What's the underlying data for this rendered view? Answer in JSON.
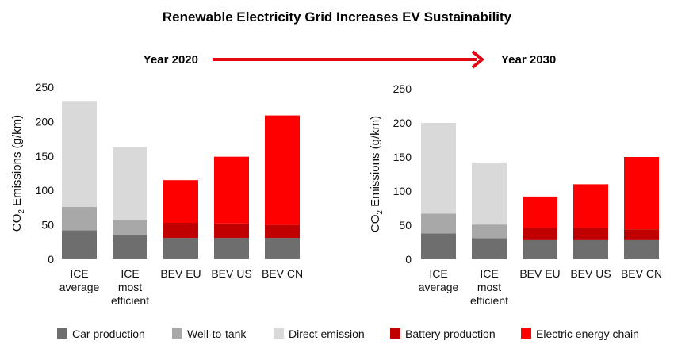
{
  "title": "Renewable Electricity Grid Increases EV Sustainability",
  "timeline": {
    "from": "Year 2020",
    "to": "Year 2030",
    "arrow_color": "#e30613"
  },
  "legend": [
    {
      "label": "Car production",
      "color": "#6e6e6e"
    },
    {
      "label": "Well-to-tank",
      "color": "#a8a8a8"
    },
    {
      "label": "Direct emission",
      "color": "#d9d9d9"
    },
    {
      "label": "Battery production",
      "color": "#c00000"
    },
    {
      "label": "Electric energy chain",
      "color": "#ff0000"
    }
  ],
  "chart_data": [
    {
      "type": "bar",
      "stacked": true,
      "period": "Year 2020",
      "categories": [
        [
          "ICE",
          "average"
        ],
        [
          "ICE",
          "most",
          "efficient"
        ],
        [
          "BEV EU"
        ],
        [
          "BEV US"
        ],
        [
          "BEV CN"
        ]
      ],
      "ylabel_main": "CO",
      "ylabel_sub": "2",
      "ylabel_rest": " Emissions (g/km)",
      "ylim": [
        0,
        250
      ],
      "yticks": [
        0,
        50,
        100,
        150,
        200,
        250
      ],
      "series": [
        {
          "name": "Car production",
          "values": [
            42,
            35,
            31,
            31,
            31
          ]
        },
        {
          "name": "Well-to-tank",
          "values": [
            34,
            22,
            0,
            0,
            0
          ]
        },
        {
          "name": "Direct emission",
          "values": [
            153,
            106,
            0,
            0,
            0
          ]
        },
        {
          "name": "Battery production",
          "values": [
            0,
            0,
            22,
            21,
            19
          ]
        },
        {
          "name": "Electric energy chain",
          "values": [
            0,
            0,
            62,
            97,
            159
          ]
        }
      ]
    },
    {
      "type": "bar",
      "stacked": true,
      "period": "Year 2030",
      "categories": [
        [
          "ICE",
          "average"
        ],
        [
          "ICE",
          "most",
          "efficient"
        ],
        [
          "BEV EU"
        ],
        [
          "BEV US"
        ],
        [
          "BEV CN"
        ]
      ],
      "ylabel_main": "CO",
      "ylabel_sub": "2",
      "ylabel_rest": " Emissions (g/km)",
      "ylim": [
        0,
        250
      ],
      "yticks": [
        0,
        50,
        100,
        150,
        200,
        250
      ],
      "series": [
        {
          "name": "Car production",
          "values": [
            38,
            31,
            28,
            28,
            28
          ]
        },
        {
          "name": "Well-to-tank",
          "values": [
            29,
            20,
            0,
            0,
            0
          ]
        },
        {
          "name": "Direct emission",
          "values": [
            133,
            91,
            0,
            0,
            0
          ]
        },
        {
          "name": "Battery production",
          "values": [
            0,
            0,
            18,
            18,
            16
          ]
        },
        {
          "name": "Electric energy chain",
          "values": [
            0,
            0,
            46,
            64,
            106
          ]
        }
      ]
    }
  ]
}
